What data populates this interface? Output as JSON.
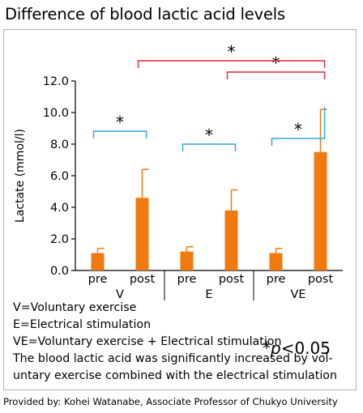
{
  "title": "Difference of blood lactic acid levels",
  "chart_data": {
    "type": "bar",
    "ylabel": "Lactate (mmol/l)",
    "ylim": [
      0,
      12
    ],
    "yticks": [
      "0.0",
      "2.0",
      "4.0",
      "6.0",
      "8.0",
      "10.0",
      "12.0"
    ],
    "groups": [
      {
        "label": "V",
        "bars": [
          {
            "label": "pre",
            "value": 1.1,
            "error": 0.3
          },
          {
            "label": "post",
            "value": 4.6,
            "error": 1.8
          }
        ]
      },
      {
        "label": "E",
        "bars": [
          {
            "label": "pre",
            "value": 1.2,
            "error": 0.3
          },
          {
            "label": "post",
            "value": 3.8,
            "error": 1.3
          }
        ]
      },
      {
        "label": "VE",
        "bars": [
          {
            "label": "pre",
            "value": 1.1,
            "error": 0.3
          },
          {
            "label": "post",
            "value": 7.5,
            "error": 2.7
          }
        ]
      }
    ],
    "bar_color": "#f07a10",
    "significance": [
      {
        "from": "V pre",
        "to": "V post",
        "mark": "*",
        "color": "#2aa7e0"
      },
      {
        "from": "E pre",
        "to": "E post",
        "mark": "*",
        "color": "#2aa7e0"
      },
      {
        "from": "VE pre",
        "to": "VE post",
        "mark": "*",
        "color": "#2aa7e0"
      },
      {
        "from": "E post",
        "to": "VE post",
        "mark": "*",
        "color": "#e8233a"
      },
      {
        "from": "V post",
        "to": "VE post",
        "mark": "*",
        "color": "#e8233a"
      }
    ],
    "grid": false
  },
  "notes": [
    "V=Voluntary exercise",
    "E=Electrical stimulation",
    "VE=Voluntary exercise + Electrical stimulation",
    "The blood lactic acid was significantly increased by vol-",
    "untary exercise combined with the electrical stimulation"
  ],
  "significance_note": {
    "symbol": "*",
    "p": "p",
    "text": "<0.05"
  },
  "credit": "Provided by: Kohei Watanabe, Associate Professor of Chukyo University"
}
